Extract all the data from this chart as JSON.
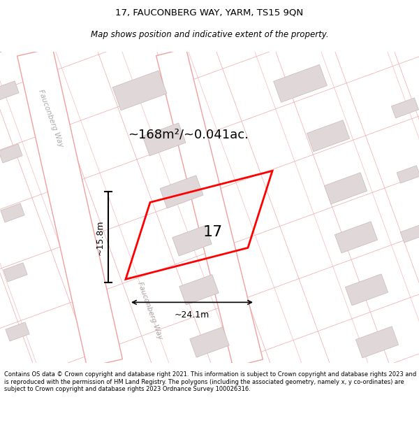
{
  "title_line1": "17, FAUCONBERG WAY, YARM, TS15 9QN",
  "title_line2": "Map shows position and indicative extent of the property.",
  "area_text": "~168m²/~0.041ac.",
  "plot_number": "17",
  "dim_width": "~24.1m",
  "dim_height": "~15.8m",
  "footer_text": "Contains OS data © Crown copyright and database right 2021. This information is subject to Crown copyright and database rights 2023 and is reproduced with the permission of HM Land Registry. The polygons (including the associated geometry, namely x, y co-ordinates) are subject to Crown copyright and database rights 2023 Ordnance Survey 100026316.",
  "map_bg": "#f0ecec",
  "road_fill": "#ffffff",
  "road_edge": "#f0a0a0",
  "building_fill": "#e0d8d8",
  "building_edge": "#c8b8b8",
  "plot_edge": "#ff0000",
  "street_label_color": "#aaaaaa",
  "title_color": "#000000",
  "footer_color": "#000000",
  "title_fontsize": 9.5,
  "subtitle_fontsize": 8.5,
  "area_fontsize": 13,
  "plot_label_fontsize": 16,
  "dim_fontsize": 9,
  "street_fontsize": 7.5,
  "footer_fontsize": 6.0
}
